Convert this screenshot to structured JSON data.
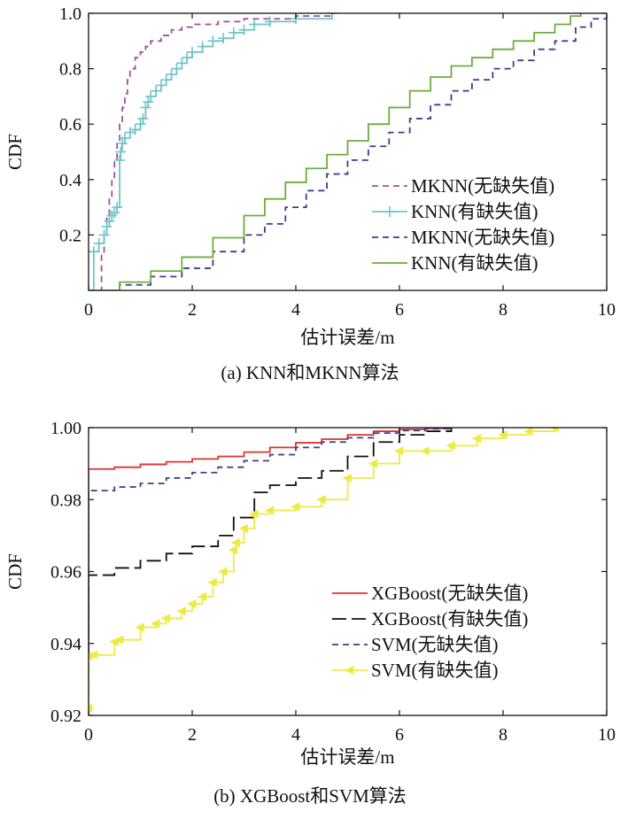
{
  "chart_data": [
    {
      "id": "a",
      "type": "line",
      "caption": "(a) KNN和MKNN算法",
      "xlabel": "估计误差/m",
      "ylabel": "CDF",
      "xlim": [
        0,
        10
      ],
      "ylim": [
        0,
        1.0
      ],
      "x_ticks": [
        0,
        2,
        4,
        6,
        8,
        10
      ],
      "x_tick_labels": [
        "0",
        "2",
        "4",
        "6",
        "8",
        "10"
      ],
      "y_ticks": [
        0.2,
        0.4,
        0.6,
        0.8,
        1.0
      ],
      "y_tick_labels": [
        "0.2",
        "0.4",
        "0.6",
        "0.8",
        "1.0"
      ],
      "legend_position": "lower-right",
      "series": [
        {
          "name": "MKNN(无缺失值)",
          "color": "#a0509a",
          "style": "dashed",
          "marker": "none",
          "x": [
            0,
            0.25,
            0.3,
            0.35,
            0.4,
            0.45,
            0.5,
            0.55,
            0.6,
            0.65,
            0.7,
            0.75,
            0.8,
            0.9,
            1.0,
            1.1,
            1.2,
            1.4,
            1.6,
            1.8,
            2.0,
            2.5,
            3.0,
            4.0,
            4.7
          ],
          "y": [
            0,
            0.13,
            0.2,
            0.26,
            0.33,
            0.4,
            0.47,
            0.53,
            0.6,
            0.66,
            0.71,
            0.76,
            0.8,
            0.84,
            0.86,
            0.88,
            0.9,
            0.92,
            0.94,
            0.95,
            0.96,
            0.97,
            0.98,
            0.99,
            1.0
          ]
        },
        {
          "name": "KNN(有缺失值)",
          "color": "#6fc4c8",
          "style": "solid",
          "marker": "plus",
          "x": [
            0,
            0.1,
            0.2,
            0.3,
            0.35,
            0.4,
            0.45,
            0.5,
            0.55,
            0.6,
            0.62,
            0.65,
            0.7,
            0.8,
            0.9,
            1.0,
            1.05,
            1.1,
            1.15,
            1.2,
            1.3,
            1.4,
            1.5,
            1.6,
            1.7,
            1.8,
            1.9,
            2.0,
            2.2,
            2.4,
            2.6,
            2.8,
            3.0,
            3.2,
            3.5,
            4.0,
            4.7
          ],
          "y": [
            0,
            0.14,
            0.17,
            0.2,
            0.23,
            0.25,
            0.27,
            0.28,
            0.3,
            0.47,
            0.5,
            0.53,
            0.55,
            0.57,
            0.58,
            0.6,
            0.62,
            0.66,
            0.68,
            0.7,
            0.72,
            0.74,
            0.76,
            0.78,
            0.8,
            0.82,
            0.84,
            0.86,
            0.88,
            0.9,
            0.91,
            0.93,
            0.94,
            0.96,
            0.97,
            0.98,
            1.0
          ]
        },
        {
          "name": "MKNN(无缺失值)",
          "color": "#3a3f8c",
          "style": "dashed",
          "marker": "none",
          "x": [
            0,
            0.6,
            1.2,
            1.8,
            2.4,
            3.0,
            3.4,
            3.8,
            4.2,
            4.6,
            5.0,
            5.4,
            5.8,
            6.2,
            6.6,
            7.0,
            7.4,
            7.8,
            8.2,
            8.6,
            9.0,
            9.4,
            9.7,
            10.0
          ],
          "y": [
            0,
            0.02,
            0.05,
            0.08,
            0.14,
            0.2,
            0.24,
            0.3,
            0.36,
            0.42,
            0.47,
            0.52,
            0.57,
            0.62,
            0.67,
            0.72,
            0.76,
            0.8,
            0.83,
            0.87,
            0.9,
            0.95,
            0.98,
            1.0
          ]
        },
        {
          "name": "KNN(有缺失值)",
          "color": "#6cae3c",
          "style": "solid",
          "marker": "none",
          "x": [
            0,
            0.6,
            1.2,
            1.8,
            2.4,
            3.0,
            3.4,
            3.8,
            4.2,
            4.6,
            5.0,
            5.4,
            5.8,
            6.2,
            6.6,
            7.0,
            7.4,
            7.8,
            8.2,
            8.6,
            9.0,
            9.3,
            9.5
          ],
          "y": [
            0,
            0.03,
            0.07,
            0.12,
            0.19,
            0.27,
            0.33,
            0.39,
            0.44,
            0.49,
            0.54,
            0.6,
            0.66,
            0.72,
            0.77,
            0.81,
            0.84,
            0.87,
            0.9,
            0.93,
            0.96,
            0.99,
            1.0
          ]
        }
      ]
    },
    {
      "id": "b",
      "type": "line",
      "caption": "(b) XGBoost和SVM算法",
      "xlabel": "估计误差/m",
      "ylabel": "CDF",
      "xlim": [
        0,
        10
      ],
      "ylim": [
        0.92,
        1.0
      ],
      "x_ticks": [
        0,
        2,
        4,
        6,
        8,
        10
      ],
      "x_tick_labels": [
        "0",
        "2",
        "4",
        "6",
        "8",
        "10"
      ],
      "y_ticks": [
        0.92,
        0.94,
        0.96,
        0.98,
        1.0
      ],
      "y_tick_labels": [
        "0.92",
        "0.94",
        "0.96",
        "0.98",
        "1.00"
      ],
      "legend_position": "lower-right",
      "series": [
        {
          "name": "XGBoost(无缺失值)",
          "color": "#e0332b",
          "style": "solid",
          "marker": "none",
          "x": [
            0,
            0,
            0.5,
            1.0,
            1.5,
            2.0,
            2.5,
            3.0,
            3.5,
            4.0,
            4.5,
            5.0,
            5.5,
            6.0,
            6.5,
            7.0
          ],
          "y": [
            0.92,
            0.9885,
            0.989,
            0.9898,
            0.9905,
            0.9913,
            0.992,
            0.9932,
            0.9945,
            0.9958,
            0.9968,
            0.998,
            0.999,
            0.9995,
            0.9998,
            1.0
          ]
        },
        {
          "name": "XGBoost(有缺失值)",
          "color": "#111111",
          "style": "longdash",
          "marker": "none",
          "x": [
            0,
            0,
            0.5,
            1.0,
            1.5,
            2.0,
            2.5,
            2.8,
            3.2,
            3.5,
            4.0,
            4.5,
            5.0,
            5.5,
            6.0,
            6.5,
            7.0
          ],
          "y": [
            0.925,
            0.959,
            0.961,
            0.963,
            0.965,
            0.967,
            0.97,
            0.975,
            0.982,
            0.984,
            0.986,
            0.988,
            0.992,
            0.996,
            0.998,
            0.999,
            1.0
          ]
        },
        {
          "name": "SVM(无缺失值)",
          "color": "#3a3f8c",
          "style": "dashed",
          "marker": "none",
          "x": [
            0,
            0,
            0.5,
            1.0,
            1.5,
            2.0,
            2.5,
            3.0,
            3.5,
            4.0,
            4.5,
            5.0,
            5.5,
            6.0,
            6.5,
            7.0
          ],
          "y": [
            0.93,
            0.9825,
            0.9835,
            0.9845,
            0.986,
            0.9875,
            0.989,
            0.9908,
            0.9925,
            0.9945,
            0.996,
            0.9972,
            0.9985,
            0.9992,
            0.9997,
            1.0
          ]
        },
        {
          "name": "SVM(有缺失值)",
          "color": "#eeea45",
          "style": "solid",
          "marker": "triangle-left",
          "x": [
            0,
            0,
            0.1,
            0.5,
            0.6,
            1.0,
            1.3,
            1.5,
            1.8,
            2.0,
            2.2,
            2.4,
            2.6,
            2.8,
            2.85,
            3.0,
            3.2,
            3.5,
            4.0,
            4.5,
            5.0,
            5.5,
            6.0,
            6.5,
            7.0,
            7.5,
            8.0,
            8.5,
            9.0
          ],
          "y": [
            0.922,
            0.9365,
            0.9368,
            0.9405,
            0.941,
            0.9445,
            0.9455,
            0.947,
            0.949,
            0.951,
            0.953,
            0.957,
            0.96,
            0.966,
            0.968,
            0.972,
            0.976,
            0.977,
            0.978,
            0.98,
            0.986,
            0.99,
            0.9935,
            0.9935,
            0.995,
            0.997,
            0.998,
            0.999,
            1.0
          ]
        }
      ]
    }
  ]
}
